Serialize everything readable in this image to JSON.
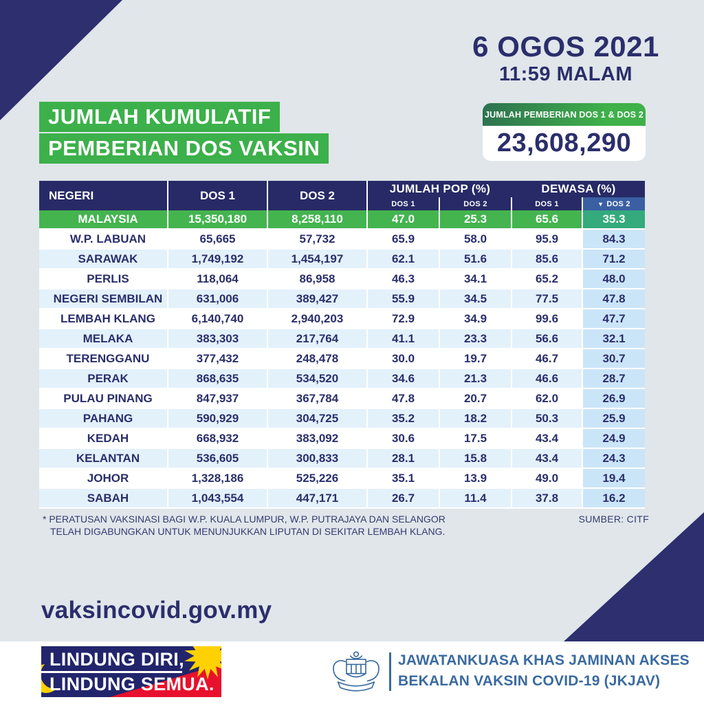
{
  "colors": {
    "background": "#e0e6ea",
    "navy": "#2b2e6b",
    "table_header_navy": "#272a66",
    "sort_column_blue": "#3a5fa3",
    "green": "#3cb04a",
    "green_row": "#44b44f",
    "teal_green_cell": "#35aa7d",
    "badge_gradient_left": "#2e7050",
    "badge_gradient_right": "#3fb04a",
    "light_blue_row": "#e3f1fb",
    "light_blue_column": "#cbe5f8",
    "flag_red": "#e8112d",
    "flag_yellow": "#ffd100",
    "jkjav_steel_blue": "#3a6a9f",
    "white": "#ffffff"
  },
  "header": {
    "date": "6 OGOS 2021",
    "time": "11:59 MALAM",
    "title_line1": "JUMLAH KUMULATIF",
    "title_line2": "PEMBERIAN DOS VAKSIN",
    "total_label": "JUMLAH PEMBERIAN DOS 1 & DOS 2",
    "total_value": "23,608,290"
  },
  "table": {
    "header": {
      "negeri": "NEGERI",
      "dos1": "DOS 1",
      "dos2": "DOS 2",
      "jumlah_pop": "JUMLAH POP (%)",
      "dewasa": "DEWASA (%)",
      "sub_dos1": "DOS 1",
      "sub_dos2": "DOS 2",
      "sort_icon": "▼"
    },
    "rows": [
      {
        "negeri": "MALAYSIA",
        "dos1": "15,350,180",
        "dos2": "8,258,110",
        "pop_dos1": "47.0",
        "pop_dos2": "25.3",
        "dewasa_dos1": "65.6",
        "dewasa_dos2": "35.3",
        "highlight": true
      },
      {
        "negeri": "W.P. LABUAN",
        "dos1": "65,665",
        "dos2": "57,732",
        "pop_dos1": "65.9",
        "pop_dos2": "58.0",
        "dewasa_dos1": "95.9",
        "dewasa_dos2": "84.3",
        "highlight": false
      },
      {
        "negeri": "SARAWAK",
        "dos1": "1,749,192",
        "dos2": "1,454,197",
        "pop_dos1": "62.1",
        "pop_dos2": "51.6",
        "dewasa_dos1": "85.6",
        "dewasa_dos2": "71.2",
        "highlight": false
      },
      {
        "negeri": "PERLIS",
        "dos1": "118,064",
        "dos2": "86,958",
        "pop_dos1": "46.3",
        "pop_dos2": "34.1",
        "dewasa_dos1": "65.2",
        "dewasa_dos2": "48.0",
        "highlight": false
      },
      {
        "negeri": "NEGERI SEMBILAN",
        "dos1": "631,006",
        "dos2": "389,427",
        "pop_dos1": "55.9",
        "pop_dos2": "34.5",
        "dewasa_dos1": "77.5",
        "dewasa_dos2": "47.8",
        "highlight": false
      },
      {
        "negeri": "LEMBAH KLANG",
        "dos1": "6,140,740",
        "dos2": "2,940,203",
        "pop_dos1": "72.9",
        "pop_dos2": "34.9",
        "dewasa_dos1": "99.6",
        "dewasa_dos2": "47.7",
        "highlight": false
      },
      {
        "negeri": "MELAKA",
        "dos1": "383,303",
        "dos2": "217,764",
        "pop_dos1": "41.1",
        "pop_dos2": "23.3",
        "dewasa_dos1": "56.6",
        "dewasa_dos2": "32.1",
        "highlight": false
      },
      {
        "negeri": "TERENGGANU",
        "dos1": "377,432",
        "dos2": "248,478",
        "pop_dos1": "30.0",
        "pop_dos2": "19.7",
        "dewasa_dos1": "46.7",
        "dewasa_dos2": "30.7",
        "highlight": false
      },
      {
        "negeri": "PERAK",
        "dos1": "868,635",
        "dos2": "534,520",
        "pop_dos1": "34.6",
        "pop_dos2": "21.3",
        "dewasa_dos1": "46.6",
        "dewasa_dos2": "28.7",
        "highlight": false
      },
      {
        "negeri": "PULAU PINANG",
        "dos1": "847,937",
        "dos2": "367,784",
        "pop_dos1": "47.8",
        "pop_dos2": "20.7",
        "dewasa_dos1": "62.0",
        "dewasa_dos2": "26.9",
        "highlight": false
      },
      {
        "negeri": "PAHANG",
        "dos1": "590,929",
        "dos2": "304,725",
        "pop_dos1": "35.2",
        "pop_dos2": "18.2",
        "dewasa_dos1": "50.3",
        "dewasa_dos2": "25.9",
        "highlight": false
      },
      {
        "negeri": "KEDAH",
        "dos1": "668,932",
        "dos2": "383,092",
        "pop_dos1": "30.6",
        "pop_dos2": "17.5",
        "dewasa_dos1": "43.4",
        "dewasa_dos2": "24.9",
        "highlight": false
      },
      {
        "negeri": "KELANTAN",
        "dos1": "536,605",
        "dos2": "300,833",
        "pop_dos1": "28.1",
        "pop_dos2": "15.8",
        "dewasa_dos1": "43.4",
        "dewasa_dos2": "24.3",
        "highlight": false
      },
      {
        "negeri": "JOHOR",
        "dos1": "1,328,186",
        "dos2": "525,226",
        "pop_dos1": "35.1",
        "pop_dos2": "13.9",
        "dewasa_dos1": "49.0",
        "dewasa_dos2": "19.4",
        "highlight": false
      },
      {
        "negeri": "SABAH",
        "dos1": "1,043,554",
        "dos2": "447,171",
        "pop_dos1": "26.7",
        "pop_dos2": "11.4",
        "dewasa_dos1": "37.8",
        "dewasa_dos2": "16.2",
        "highlight": false
      }
    ]
  },
  "footnote": {
    "line1": "* PERATUSAN VAKSINASI BAGI W.P. KUALA LUMPUR, W.P. PUTRAJAYA DAN SELANGOR",
    "line2": "TELAH DIGABUNGKAN UNTUK MENUNJUKKAN LIPUTAN DI SEKITAR LEMBAH KLANG.",
    "source": "SUMBER: CITF"
  },
  "footer": {
    "website": "vaksincovid.gov.my",
    "slogan_line1": "LINDUNG DIRI,",
    "slogan_line2": "LINDUNG SEMUA.",
    "org_line1": "JAWATANKUASA KHAS JAMINAN AKSES",
    "org_line2": "BEKALAN VAKSIN COVID-19 (JKJAV)"
  },
  "chart_data": {
    "type": "table",
    "title": "JUMLAH KUMULATIF PEMBERIAN DOS VAKSIN",
    "as_of": "6 OGOS 2021 11:59 MALAM",
    "total_dos1_dos2": 23608290,
    "sorted_by": "DEWASA (%) DOS 2 descending",
    "columns": [
      "NEGERI",
      "DOS 1",
      "DOS 2",
      "JUMLAH POP (%) DOS 1",
      "JUMLAH POP (%) DOS 2",
      "DEWASA (%) DOS 1",
      "DEWASA (%) DOS 2"
    ],
    "rows": [
      [
        "MALAYSIA",
        15350180,
        8258110,
        47.0,
        25.3,
        65.6,
        35.3
      ],
      [
        "W.P. LABUAN",
        65665,
        57732,
        65.9,
        58.0,
        95.9,
        84.3
      ],
      [
        "SARAWAK",
        1749192,
        1454197,
        62.1,
        51.6,
        85.6,
        71.2
      ],
      [
        "PERLIS",
        118064,
        86958,
        46.3,
        34.1,
        65.2,
        48.0
      ],
      [
        "NEGERI SEMBILAN",
        631006,
        389427,
        55.9,
        34.5,
        77.5,
        47.8
      ],
      [
        "LEMBAH KLANG",
        6140740,
        2940203,
        72.9,
        34.9,
        99.6,
        47.7
      ],
      [
        "MELAKA",
        383303,
        217764,
        41.1,
        23.3,
        56.6,
        32.1
      ],
      [
        "TERENGGANU",
        377432,
        248478,
        30.0,
        19.7,
        46.7,
        30.7
      ],
      [
        "PERAK",
        868635,
        534520,
        34.6,
        21.3,
        46.6,
        28.7
      ],
      [
        "PULAU PINANG",
        847937,
        367784,
        47.8,
        20.7,
        62.0,
        26.9
      ],
      [
        "PAHANG",
        590929,
        304725,
        35.2,
        18.2,
        50.3,
        25.9
      ],
      [
        "KEDAH",
        668932,
        383092,
        30.6,
        17.5,
        43.4,
        24.9
      ],
      [
        "KELANTAN",
        536605,
        300833,
        28.1,
        15.8,
        43.4,
        24.3
      ],
      [
        "JOHOR",
        1328186,
        525226,
        35.1,
        13.9,
        49.0,
        19.4
      ],
      [
        "SABAH",
        1043554,
        447171,
        26.7,
        11.4,
        37.8,
        16.2
      ]
    ]
  }
}
